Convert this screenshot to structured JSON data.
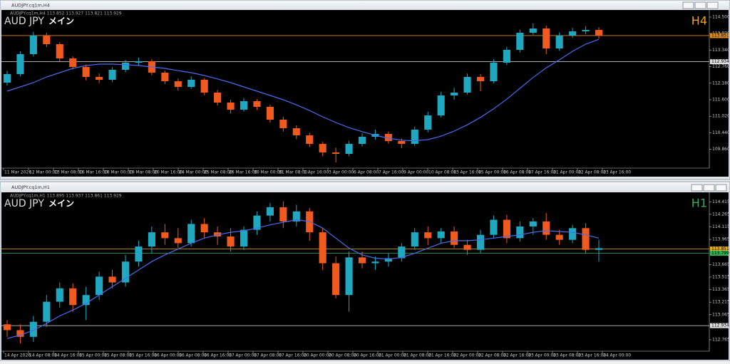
{
  "windows": [
    {
      "title": "AUDJPY.cq1m,H4"
    },
    {
      "title": "AUDJPY.cq1m,H1"
    }
  ],
  "chart_data": [
    {
      "type": "candlestick",
      "info": "AUDJPY.cq1m,H4  113.852 113.927 113.821 113.929",
      "symbol_label": "AUD JPY",
      "label_suffix": "メイン",
      "timeframe": "H4",
      "timeframe_color": "#f0a020",
      "up_color": "#1fa8c0",
      "down_color": "#f05a1e",
      "ylim": [
        109.2,
        114.675
      ],
      "yticks": [
        {
          "value": 114.5,
          "label": "114.500"
        },
        {
          "value": 113.92,
          "label": "113.920"
        },
        {
          "value": 113.34,
          "label": "113.340"
        },
        {
          "value": 112.76,
          "label": "112.760"
        },
        {
          "value": 112.18,
          "label": "112.180"
        },
        {
          "value": 111.6,
          "label": "111.600"
        },
        {
          "value": 111.02,
          "label": "111.020"
        },
        {
          "value": 110.44,
          "label": "110.440"
        },
        {
          "value": 109.86,
          "label": "109.860"
        }
      ],
      "levels": [
        {
          "value": 113.851,
          "color": "#e08a20"
        },
        {
          "value": 112.934,
          "color": "#e0e0e0"
        }
      ],
      "x_labels": [
        "11 Mar 2026",
        "12 Mar 00:00",
        "13 Mar 08:00",
        "16 Mar 16:00",
        "18 Mar 00:00",
        "19 Mar 08:00",
        "20 Mar 16:00",
        "24 Mar 00:00",
        "25 Mar 08:00",
        "26 Mar 16:00",
        "30 Mar 00:00",
        "31 Mar 08:00",
        "1 Apr 16:00",
        "3 Apr 00:00",
        "6 Apr 08:00",
        "7 Apr 16:00",
        "9 Apr 00:00",
        "10 Apr 08:00",
        "13 Apr 16:00",
        "15 Apr 00:00",
        "16 Apr 08:00",
        "17 Apr 16:00",
        "21 Apr 00:00",
        "22 Apr 08:00",
        "23 Apr 16:00"
      ],
      "candles": [
        [
          112.2,
          112.62,
          112.1,
          112.5
        ],
        [
          112.5,
          113.3,
          112.42,
          113.2
        ],
        [
          113.2,
          113.98,
          113.12,
          113.85
        ],
        [
          113.85,
          113.95,
          113.45,
          113.55
        ],
        [
          113.55,
          113.62,
          112.95,
          113.05
        ],
        [
          113.05,
          113.12,
          112.66,
          112.75
        ],
        [
          112.75,
          112.84,
          112.28,
          112.4
        ],
        [
          112.4,
          112.52,
          112.18,
          112.3
        ],
        [
          112.3,
          112.74,
          112.22,
          112.65
        ],
        [
          112.65,
          113.0,
          112.56,
          112.9
        ],
        [
          112.9,
          113.08,
          112.8,
          112.95
        ],
        [
          112.95,
          113.02,
          112.46,
          112.55
        ],
        [
          112.55,
          112.62,
          112.15,
          112.25
        ],
        [
          112.25,
          112.34,
          111.92,
          112.05
        ],
        [
          112.05,
          112.42,
          111.98,
          112.3
        ],
        [
          112.3,
          112.36,
          111.76,
          111.85
        ],
        [
          111.85,
          111.94,
          111.4,
          111.5
        ],
        [
          111.5,
          111.6,
          111.12,
          111.25
        ],
        [
          111.25,
          111.66,
          111.18,
          111.55
        ],
        [
          111.55,
          111.62,
          111.24,
          111.35
        ],
        [
          111.35,
          111.42,
          110.8,
          110.9
        ],
        [
          110.9,
          111.0,
          110.48,
          110.6
        ],
        [
          110.6,
          110.7,
          110.22,
          110.35
        ],
        [
          110.35,
          110.44,
          109.94,
          110.05
        ],
        [
          110.05,
          110.12,
          109.62,
          109.75
        ],
        [
          109.75,
          109.92,
          109.4,
          109.7
        ],
        [
          109.7,
          110.16,
          109.62,
          110.05
        ],
        [
          110.05,
          110.42,
          109.96,
          110.3
        ],
        [
          110.3,
          110.55,
          110.2,
          110.4
        ],
        [
          110.4,
          110.48,
          110.06,
          110.15
        ],
        [
          110.15,
          110.24,
          109.9,
          110.05
        ],
        [
          110.05,
          110.66,
          109.98,
          110.55
        ],
        [
          110.55,
          111.18,
          110.46,
          111.05
        ],
        [
          111.05,
          111.88,
          110.98,
          111.75
        ],
        [
          111.75,
          112.02,
          111.6,
          111.85
        ],
        [
          111.85,
          112.52,
          111.78,
          112.4
        ],
        [
          112.4,
          112.5,
          111.9,
          112.25
        ],
        [
          112.25,
          113.02,
          112.18,
          112.9
        ],
        [
          112.9,
          113.46,
          112.82,
          113.35
        ],
        [
          113.35,
          114.06,
          113.26,
          113.95
        ],
        [
          113.95,
          114.28,
          113.88,
          114.1
        ],
        [
          114.1,
          114.2,
          113.2,
          113.4
        ],
        [
          113.4,
          113.96,
          113.32,
          113.85
        ],
        [
          113.85,
          114.12,
          113.78,
          114.0
        ],
        [
          114.0,
          114.18,
          113.9,
          114.05
        ],
        [
          114.05,
          114.14,
          113.74,
          113.85
        ]
      ],
      "ma": {
        "color": "#4a6cf0",
        "values": [
          111.9,
          112.05,
          112.2,
          112.4,
          112.55,
          112.7,
          112.8,
          112.85,
          112.85,
          112.83,
          112.8,
          112.75,
          112.7,
          112.62,
          112.55,
          112.45,
          112.33,
          112.2,
          112.05,
          111.9,
          111.75,
          111.6,
          111.42,
          111.22,
          111.0,
          110.8,
          110.62,
          110.48,
          110.35,
          110.25,
          110.18,
          110.16,
          110.2,
          110.32,
          110.5,
          110.72,
          110.98,
          111.28,
          111.62,
          112.0,
          112.38,
          112.72,
          113.0,
          113.3,
          113.55,
          113.72
        ]
      }
    },
    {
      "type": "candlestick",
      "info": "AUDJPY.cq1m,H1  113.895 113.937 113.861 113.929",
      "symbol_label": "AUD JPY",
      "label_suffix": "メイン",
      "timeframe": "H1",
      "timeframe_color": "#30b050",
      "up_color": "#1fa8c0",
      "down_color": "#f05a1e",
      "ylim": [
        112.62,
        114.46
      ],
      "yticks": [
        114.415,
        114.265,
        114.115,
        113.965,
        113.665,
        113.515,
        113.365,
        113.215,
        113.065,
        112.765
      ],
      "levels": [
        {
          "value": 113.851,
          "color": "#e0b020"
        },
        {
          "value": 113.799,
          "color": "#30b050"
        },
        {
          "value": 112.934,
          "color": "#e0e0e0"
        }
      ],
      "x_labels": [
        "14 Apr 2026",
        "14 Apr 08:00",
        "14 Apr 16:00",
        "15 Apr 00:00",
        "15 Apr 08:00",
        "15 Apr 16:00",
        "16 Apr 00:00",
        "16 Apr 08:00",
        "16 Apr 16:00",
        "17 Apr 00:00",
        "17 Apr 08:00",
        "17 Apr 16:00",
        "20 Apr 00:00",
        "20 Apr 08:00",
        "20 Apr 16:00",
        "21 Apr 00:00",
        "21 Apr 08:00",
        "21 Apr 16:00",
        "22 Apr 00:00",
        "22 Apr 08:00",
        "22 Apr 16:00",
        "23 Apr 00:00",
        "23 Apr 08:00",
        "23 Apr 16:00",
        "24 Apr 00:00"
      ],
      "candles": [
        [
          112.95,
          113.0,
          112.8,
          112.88
        ],
        [
          112.88,
          112.95,
          112.72,
          112.8
        ],
        [
          112.8,
          113.05,
          112.74,
          112.98
        ],
        [
          112.98,
          113.3,
          112.92,
          113.22
        ],
        [
          113.22,
          113.45,
          113.15,
          113.38
        ],
        [
          113.38,
          113.44,
          113.1,
          113.18
        ],
        [
          113.18,
          113.4,
          113.0,
          113.3
        ],
        [
          113.3,
          113.58,
          113.24,
          113.52
        ],
        [
          113.52,
          113.6,
          113.38,
          113.45
        ],
        [
          113.45,
          113.78,
          113.4,
          113.7
        ],
        [
          113.7,
          113.95,
          113.64,
          113.88
        ],
        [
          113.88,
          114.12,
          113.8,
          114.05
        ],
        [
          114.05,
          114.15,
          113.9,
          113.98
        ],
        [
          113.98,
          114.1,
          113.86,
          113.92
        ],
        [
          113.92,
          114.2,
          113.88,
          114.15
        ],
        [
          114.15,
          114.22,
          113.98,
          114.05
        ],
        [
          114.05,
          114.12,
          113.9,
          114.0
        ],
        [
          114.0,
          114.1,
          113.82,
          113.88
        ],
        [
          113.88,
          114.12,
          113.84,
          114.08
        ],
        [
          114.08,
          114.3,
          114.02,
          114.25
        ],
        [
          114.25,
          114.4,
          114.18,
          114.35
        ],
        [
          114.35,
          114.42,
          114.1,
          114.18
        ],
        [
          114.18,
          114.38,
          114.12,
          114.3
        ],
        [
          114.3,
          114.34,
          113.95,
          114.05
        ],
        [
          114.05,
          114.1,
          113.6,
          113.68
        ],
        [
          113.68,
          113.76,
          113.26,
          113.3
        ],
        [
          113.3,
          113.82,
          113.1,
          113.75
        ],
        [
          113.75,
          113.82,
          113.62,
          113.68
        ],
        [
          113.68,
          113.76,
          113.6,
          113.7
        ],
        [
          113.7,
          113.8,
          113.64,
          113.74
        ],
        [
          113.74,
          113.92,
          113.7,
          113.88
        ],
        [
          113.88,
          114.1,
          113.84,
          114.05
        ],
        [
          114.05,
          114.12,
          113.9,
          113.98
        ],
        [
          113.98,
          114.1,
          113.92,
          114.06
        ],
        [
          114.06,
          114.12,
          113.86,
          113.9
        ],
        [
          113.9,
          113.96,
          113.78,
          113.84
        ],
        [
          113.84,
          114.08,
          113.8,
          114.02
        ],
        [
          114.02,
          114.25,
          113.98,
          114.2
        ],
        [
          114.2,
          114.26,
          113.92,
          113.98
        ],
        [
          113.98,
          114.18,
          113.94,
          114.12
        ],
        [
          114.12,
          114.22,
          114.02,
          114.18
        ],
        [
          114.18,
          114.28,
          113.96,
          114.02
        ],
        [
          114.02,
          114.08,
          113.9,
          113.96
        ],
        [
          113.96,
          114.14,
          113.92,
          114.1
        ],
        [
          114.1,
          114.16,
          113.8,
          113.84
        ],
        [
          113.84,
          113.96,
          113.7,
          113.86
        ]
      ],
      "ma": {
        "color": "#4a6cf0",
        "values": [
          112.78,
          112.82,
          112.88,
          112.96,
          113.05,
          113.12,
          113.2,
          113.3,
          113.4,
          113.5,
          113.6,
          113.7,
          113.78,
          113.85,
          113.92,
          113.98,
          114.02,
          114.05,
          114.07,
          114.1,
          114.14,
          114.17,
          114.2,
          114.18,
          114.1,
          113.98,
          113.86,
          113.78,
          113.74,
          113.73,
          113.75,
          113.8,
          113.86,
          113.92,
          113.95,
          113.95,
          113.96,
          113.98,
          114.0,
          114.02,
          114.05,
          114.07,
          114.06,
          114.05,
          114.02,
          113.98
        ]
      }
    }
  ]
}
